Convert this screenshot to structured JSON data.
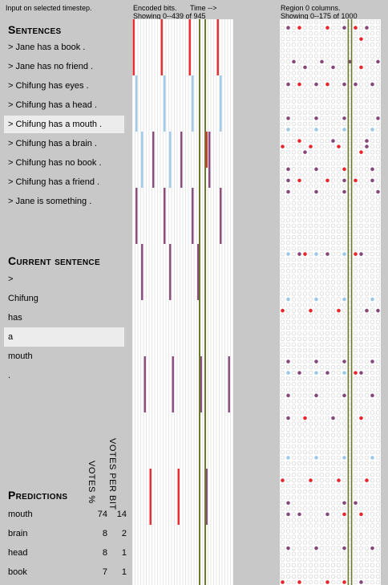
{
  "header": {
    "input_note": "Input on selected timestep.",
    "encoded_title": "Encoded bits.",
    "time_label": "Time -->",
    "encoded_range": "Showing 0--439 of 945",
    "region_title": "Region 0 columns.",
    "region_range": "Showing 0--175 of 1000"
  },
  "sentences": {
    "title": "Sentences",
    "items": [
      "> Jane has a book .",
      "> Jane has no friend .",
      "> Chifung has eyes .",
      "> Chifung has a head .",
      "> Chifung has a mouth .",
      "> Chifung has a brain .",
      "> Chifung has no book .",
      "> Chifung has a friend .",
      "> Jane is something ."
    ],
    "selected_index": 4
  },
  "current_sentence": {
    "title": "Current sentence",
    "tokens": [
      ">",
      "Chifung",
      "has",
      "a",
      "mouth",
      "."
    ],
    "selected_index": 3
  },
  "predictions": {
    "title": "Predictions",
    "col_votes_pct": "VOTES %",
    "col_votes_per_bit": "VOTES PER BIT",
    "rows": [
      {
        "word": "mouth",
        "votes_pct": "74",
        "votes_per_bit": "14"
      },
      {
        "word": "brain",
        "votes_pct": "8",
        "votes_per_bit": "2"
      },
      {
        "word": "head",
        "votes_pct": "8",
        "votes_per_bit": "1"
      },
      {
        "word": "book",
        "votes_pct": "7",
        "votes_per_bit": "1"
      }
    ]
  },
  "colors": {
    "red": "#e8262b",
    "purple": "#86477a",
    "blue": "#9cc8ea",
    "olive": "#6b7a2a",
    "grid": "#cfcfcf"
  }
}
